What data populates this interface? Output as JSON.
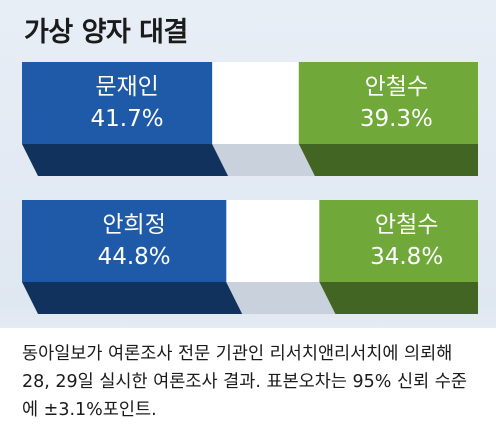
{
  "title": "가상 양자 대결",
  "chart_data": [
    {
      "type": "bar",
      "stacked": true,
      "categories": [
        "문재인",
        "안철수"
      ],
      "values": [
        41.7,
        39.3
      ],
      "value_labels": [
        "41.7%",
        "39.3%"
      ],
      "unit": "%",
      "colors": [
        "#1f5aa8",
        "#70a83a"
      ]
    },
    {
      "type": "bar",
      "stacked": true,
      "categories": [
        "안희정",
        "안철수"
      ],
      "values": [
        44.8,
        34.8
      ],
      "value_labels": [
        "44.8%",
        "34.8%"
      ],
      "unit": "%",
      "colors": [
        "#1f5aa8",
        "#70a83a"
      ]
    }
  ],
  "caption": "동아일보가 여론조사 전문 기관인 리서치앤리서치에 의뢰해 28, 29일 실시한 여론조사 결과. 표본오차는 95% 신뢰 수준에 ±3.1%포인트."
}
